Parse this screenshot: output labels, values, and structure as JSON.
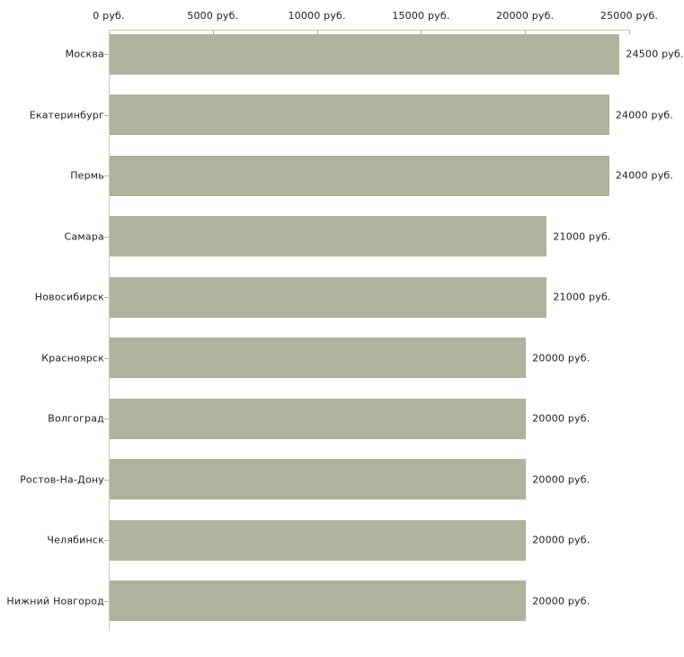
{
  "chart_data": {
    "type": "bar",
    "orientation": "horizontal",
    "title": "",
    "xlabel": "",
    "ylabel": "",
    "unit": "руб.",
    "categories": [
      "Москва",
      "Екатеринбург",
      "Пермь",
      "Самара",
      "Новосибирск",
      "Красноярск",
      "Волгоград",
      "Ростов-На-Дону",
      "Челябинск",
      "Нижний Новгород"
    ],
    "values": [
      24500,
      24000,
      24000,
      21000,
      21000,
      20000,
      20000,
      20000,
      20000,
      20000
    ],
    "value_labels": [
      "24500 руб.",
      "24000 руб.",
      "24000 руб.",
      "21000 руб.",
      "21000 руб.",
      "20000 руб.",
      "20000 руб.",
      "20000 руб.",
      "20000 руб.",
      "20000 руб."
    ],
    "x_axis": {
      "position": "top",
      "xlim": [
        0,
        25000
      ],
      "ticks": [
        0,
        5000,
        10000,
        15000,
        20000,
        25000
      ],
      "tick_labels": [
        "0 руб.",
        "5000 руб.",
        "10000 руб.",
        "15000 руб.",
        "20000 руб.",
        "25000 руб."
      ]
    },
    "legend": null,
    "grid": false,
    "colors": {
      "bar": "#aeb49b",
      "x_axis_line": "#c6c6ad",
      "tick_mark": "#b4b496",
      "y_axis_line": "#c9c9c9",
      "text": "#1c1c1c",
      "background": "#ffffff"
    }
  }
}
